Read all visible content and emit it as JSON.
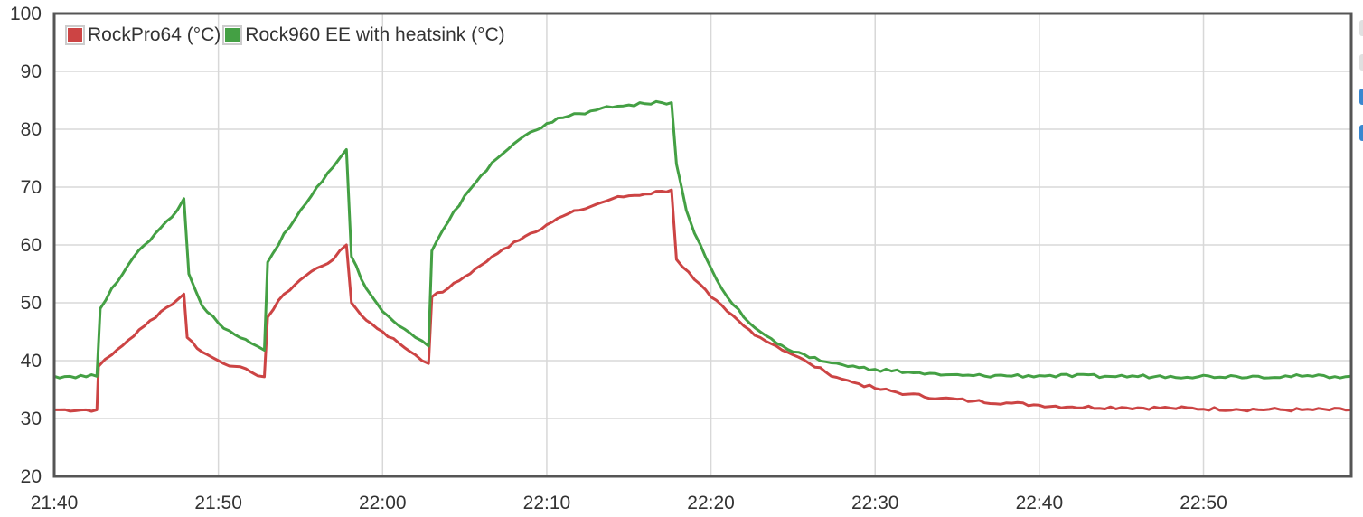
{
  "chart_data": {
    "type": "line",
    "title": "",
    "xlabel": "",
    "ylabel": "",
    "ylim": [
      20,
      100
    ],
    "y_ticks": [
      20,
      30,
      40,
      50,
      60,
      70,
      80,
      90,
      100
    ],
    "x_range_minutes": [
      0,
      79
    ],
    "x_ticks": [
      {
        "m": 0,
        "label": "21:40"
      },
      {
        "m": 10,
        "label": "21:50"
      },
      {
        "m": 20,
        "label": "22:00"
      },
      {
        "m": 30,
        "label": "22:10"
      },
      {
        "m": 40,
        "label": "22:20"
      },
      {
        "m": 50,
        "label": "22:30"
      },
      {
        "m": 60,
        "label": "22:40"
      },
      {
        "m": 70,
        "label": "22:50"
      }
    ],
    "grid": true,
    "legend_position": "top-left",
    "series": [
      {
        "name": "RockPro64 (°C)",
        "color": "#cc4444",
        "points": [
          [
            0,
            31.5
          ],
          [
            2.6,
            31.5
          ],
          [
            2.7,
            39
          ],
          [
            3.5,
            41
          ],
          [
            4.5,
            43.5
          ],
          [
            5.5,
            46
          ],
          [
            6.5,
            48.5
          ],
          [
            7.5,
            50.5
          ],
          [
            7.9,
            51.5
          ],
          [
            8.1,
            44
          ],
          [
            9,
            41.5
          ],
          [
            10,
            40
          ],
          [
            11,
            39
          ],
          [
            12,
            38
          ],
          [
            12.8,
            37.2
          ],
          [
            13,
            47.5
          ],
          [
            14,
            51.5
          ],
          [
            15,
            54
          ],
          [
            16,
            56
          ],
          [
            17,
            57.5
          ],
          [
            17.8,
            60
          ],
          [
            18.1,
            50
          ],
          [
            19,
            47
          ],
          [
            20,
            45
          ],
          [
            21,
            43
          ],
          [
            22,
            41
          ],
          [
            22.8,
            39.5
          ],
          [
            23,
            51
          ],
          [
            24,
            52.5
          ],
          [
            25,
            54.5
          ],
          [
            26,
            56.5
          ],
          [
            27,
            58.5
          ],
          [
            28,
            60.5
          ],
          [
            29,
            62
          ],
          [
            30,
            63.5
          ],
          [
            31,
            65
          ],
          [
            32,
            66
          ],
          [
            33,
            67
          ],
          [
            34,
            68
          ],
          [
            35,
            68.5
          ],
          [
            36,
            68.8
          ],
          [
            37,
            69.3
          ],
          [
            37.6,
            69.5
          ],
          [
            37.9,
            57.5
          ],
          [
            39,
            54
          ],
          [
            40,
            51
          ],
          [
            41,
            48.5
          ],
          [
            42,
            46
          ],
          [
            43,
            44
          ],
          [
            44,
            42.5
          ],
          [
            45,
            41
          ],
          [
            46,
            39.5
          ],
          [
            47,
            38
          ],
          [
            48,
            36.8
          ],
          [
            49,
            36
          ],
          [
            50,
            35.2
          ],
          [
            52,
            34.2
          ],
          [
            54,
            33.5
          ],
          [
            56,
            33
          ],
          [
            58,
            32.7
          ],
          [
            60,
            32.3
          ],
          [
            62,
            32
          ],
          [
            65,
            31.9
          ],
          [
            68,
            31.8
          ],
          [
            72,
            31.6
          ],
          [
            76,
            31.5
          ],
          [
            79,
            31.5
          ]
        ]
      },
      {
        "name": "Rock960 EE with heatsink (°C)",
        "color": "#44a044",
        "points": [
          [
            0,
            37.3
          ],
          [
            2.6,
            37.3
          ],
          [
            2.8,
            49
          ],
          [
            3.5,
            52.5
          ],
          [
            4.5,
            56.5
          ],
          [
            5.5,
            60
          ],
          [
            6.5,
            63
          ],
          [
            7.5,
            66
          ],
          [
            7.9,
            68
          ],
          [
            8.2,
            55
          ],
          [
            9,
            49.5
          ],
          [
            10,
            46.5
          ],
          [
            11,
            44.5
          ],
          [
            12,
            43
          ],
          [
            12.8,
            41.8
          ],
          [
            13,
            57
          ],
          [
            14,
            62
          ],
          [
            15,
            66
          ],
          [
            16,
            70
          ],
          [
            17,
            73.5
          ],
          [
            17.8,
            76.5
          ],
          [
            18.1,
            58
          ],
          [
            19,
            52.5
          ],
          [
            20,
            48.5
          ],
          [
            21,
            46
          ],
          [
            22,
            44
          ],
          [
            22.8,
            42.5
          ],
          [
            23,
            59
          ],
          [
            24,
            64
          ],
          [
            25,
            68.5
          ],
          [
            26,
            72
          ],
          [
            27,
            75
          ],
          [
            28,
            77.5
          ],
          [
            29,
            79.5
          ],
          [
            30,
            81
          ],
          [
            31,
            82
          ],
          [
            32,
            82.7
          ],
          [
            33,
            83.3
          ],
          [
            34,
            83.8
          ],
          [
            35,
            84.2
          ],
          [
            36,
            84.4
          ],
          [
            37,
            84.6
          ],
          [
            37.6,
            84.6
          ],
          [
            37.9,
            74
          ],
          [
            38.5,
            66
          ],
          [
            39,
            62
          ],
          [
            40,
            56
          ],
          [
            41,
            51
          ],
          [
            42,
            47.5
          ],
          [
            43,
            45
          ],
          [
            44,
            43
          ],
          [
            45,
            41.5
          ],
          [
            46,
            40.5
          ],
          [
            47,
            39.8
          ],
          [
            48,
            39.3
          ],
          [
            49,
            38.8
          ],
          [
            50,
            38.5
          ],
          [
            52,
            38
          ],
          [
            54,
            37.5
          ],
          [
            56,
            37.4
          ],
          [
            60,
            37.4
          ],
          [
            64,
            37.3
          ],
          [
            68,
            37.3
          ],
          [
            72,
            37.3
          ],
          [
            76,
            37.3
          ],
          [
            79,
            37.3
          ]
        ]
      }
    ]
  }
}
